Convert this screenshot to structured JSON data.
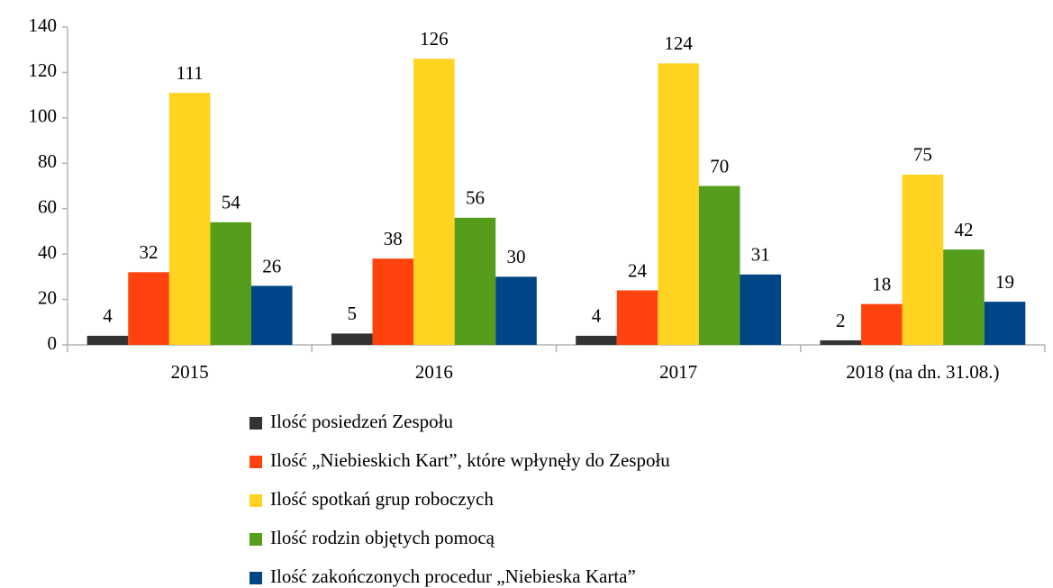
{
  "chart_data": {
    "type": "bar",
    "categories": [
      "2015",
      "2016",
      "2017",
      "2018 (na dn. 31.08.)"
    ],
    "series": [
      {
        "name": "Ilość posiedzeń Zespołu",
        "color": "#333333",
        "values": [
          4,
          5,
          4,
          2
        ]
      },
      {
        "name": "Ilość „Niebieskich Kart”, które wpłynęły do Zespołu",
        "color": "#ff420e",
        "values": [
          32,
          38,
          24,
          18
        ]
      },
      {
        "name": "Ilość spotkań grup roboczych",
        "color": "#ffd320",
        "values": [
          111,
          126,
          124,
          75
        ]
      },
      {
        "name": "Ilość rodzin objętych pomocą",
        "color": "#579d1c",
        "values": [
          54,
          56,
          70,
          42
        ]
      },
      {
        "name": "Ilość zakończonych procedur „Niebieska Karta”",
        "color": "#004586",
        "values": [
          26,
          30,
          31,
          19
        ]
      }
    ],
    "ylim": [
      0,
      140
    ],
    "yticks": [
      0,
      20,
      40,
      60,
      80,
      100,
      120,
      140
    ],
    "grid": false,
    "legend": "bottom"
  }
}
